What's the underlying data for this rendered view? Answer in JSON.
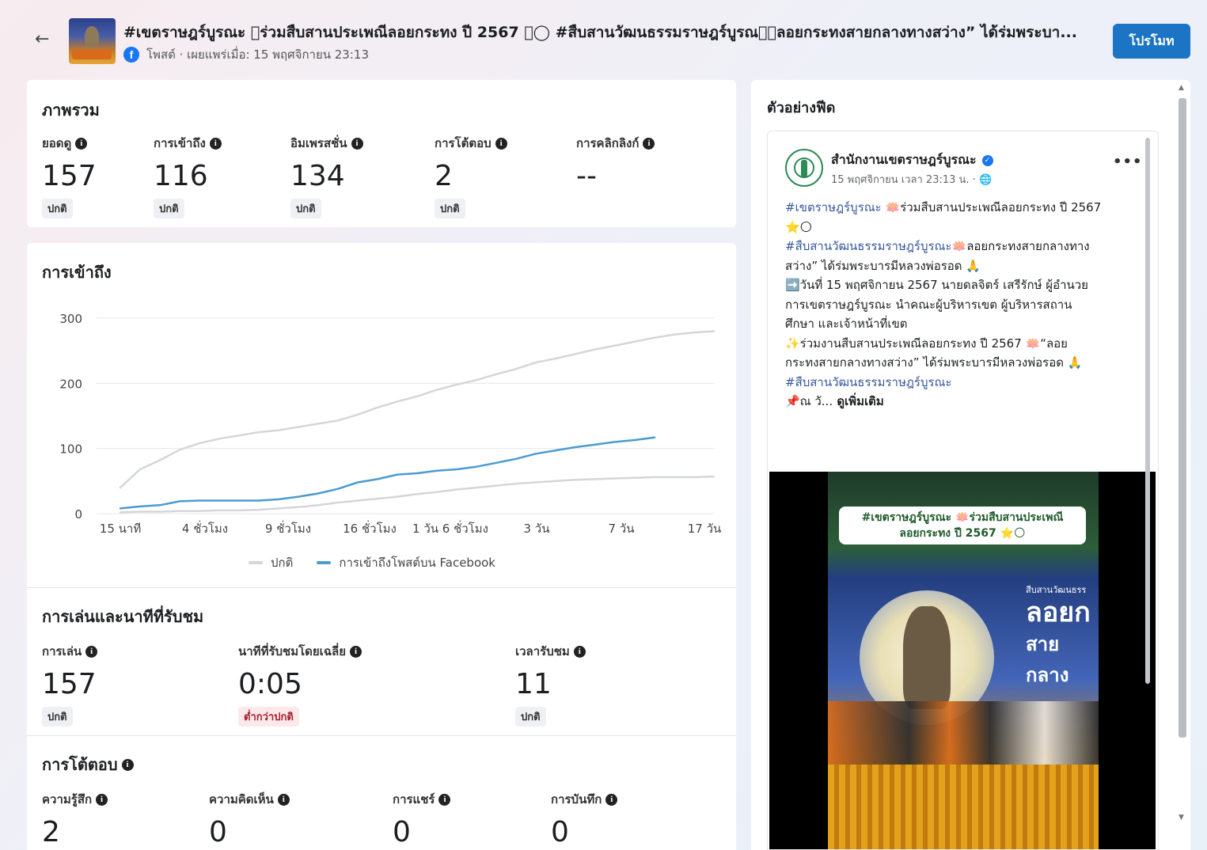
{
  "header": {
    "title": "#เขตราษฎร์บูรณะ ⃞ร่วมสืบสานประเพณีลอยกระทง ปี 2567 ⭑◯ #สืบสานวัฒนธรรมราษฎร์บูรณะ⃞ลอยกระทงสายกลางทางสว่าง” ได้ร่มพระบา...",
    "meta": "โพสต์ · เผยแพร่เมื่อ: 15 พฤศจิกายน 23:13",
    "promote_label": "โปรโมท",
    "fb_letter": "f"
  },
  "overview": {
    "title": "ภาพรวม",
    "metrics": [
      {
        "label": "ยอดดู",
        "value": "157",
        "badge": "ปกติ"
      },
      {
        "label": "การเข้าถึง",
        "value": "116",
        "badge": "ปกติ"
      },
      {
        "label": "อิมเพรสชั่น",
        "value": "134",
        "badge": "ปกติ"
      },
      {
        "label": "การโต้ตอบ",
        "value": "2",
        "badge": "ปกติ"
      },
      {
        "label": "การคลิกลิงก์",
        "value": "--",
        "badge": ""
      }
    ]
  },
  "reach": {
    "title": "การเข้าถึง",
    "legend_normal": "ปกติ",
    "legend_post": "การเข้าถึงโพสต์บน Facebook"
  },
  "chart_data": {
    "type": "line",
    "title": "การเข้าถึง",
    "x_ticks": [
      "15 นาที",
      "4 ชั่วโมง",
      "9 ชั่วโมง",
      "16 ชั่วโมง",
      "1 วัน 6 ชั่วโมง",
      "3 วัน",
      "7 วัน",
      "17 วัน"
    ],
    "y_ticks": [
      "300",
      "200",
      "100",
      "0"
    ],
    "ylim": [
      0,
      300
    ],
    "grid": true,
    "legend_position": "bottom-center",
    "colors": {
      "normal": "#d4d6da",
      "post": "#4b9bd1"
    },
    "series": [
      {
        "name": "ปกติ",
        "role": "normal_upper",
        "values": [
          40,
          68,
          82,
          98,
          108,
          115,
          120,
          125,
          128,
          133,
          138,
          143,
          152,
          163,
          172,
          180,
          190,
          198,
          205,
          214,
          222,
          232,
          238,
          245,
          252,
          258,
          264,
          270,
          275,
          278,
          280
        ]
      },
      {
        "name": "ปกติ",
        "role": "normal_lower",
        "values": [
          2,
          3,
          3,
          4,
          4,
          5,
          5,
          6,
          8,
          10,
          13,
          17,
          20,
          23,
          26,
          30,
          33,
          37,
          40,
          43,
          46,
          48,
          50,
          52,
          53,
          54,
          55,
          56,
          56,
          56,
          57
        ]
      },
      {
        "name": "การเข้าถึงโพสต์บน Facebook",
        "role": "post",
        "values": [
          8,
          11,
          13,
          19,
          20,
          20,
          20,
          20,
          22,
          26,
          31,
          38,
          48,
          53,
          60,
          62,
          66,
          68,
          72,
          78,
          84,
          92,
          97,
          102,
          106,
          110,
          113,
          117
        ]
      }
    ]
  },
  "playback": {
    "title": "การเล่นและนาทีที่รับชม",
    "metrics": [
      {
        "label": "การเล่น",
        "value": "157",
        "badge": "ปกติ",
        "low": false
      },
      {
        "label": "นาทีที่รับชมโดยเฉลี่ย",
        "value": "0:05",
        "badge": "ต่ำกว่าปกติ",
        "low": true
      },
      {
        "label": "เวลารับชม",
        "value": "11",
        "badge": "ปกติ",
        "low": false
      }
    ]
  },
  "engagement": {
    "title": "การโต้ตอบ",
    "metrics": [
      {
        "label": "ความรู้สึก",
        "value": "2"
      },
      {
        "label": "ความคิดเห็น",
        "value": "0"
      },
      {
        "label": "การแชร์",
        "value": "0"
      },
      {
        "label": "การบันทึก",
        "value": "0"
      }
    ]
  },
  "feed": {
    "title": "ตัวอย่างฟีด",
    "page_name": "สำนักงานเขตราษฎร์บูรณะ",
    "time": "15 พฤศจิกายน เวลา 23:13 น. · 🌐",
    "more": "•••",
    "body": {
      "l1_tag": "#เขตราษฎร์บูรณะ",
      "l1_text": " 🪷ร่วมสืบสานประเพณีลอยกระทง ปี 2567",
      "l2": "⭐🌕",
      "l3_tag": "#สืบสานวัฒนธรรมราษฎร์บูรณะ",
      "l3_text": "🪷ลอยกระทงสายกลางทาง",
      "l4": "สว่าง” ได้ร่มพระบารมีหลวงพ่อรอด 🙏",
      "l5": "➡️วันที่ 15 พฤศจิกายน 2567 นายดลจิตร์  เสรีรักษ์ ผู้อำนวย",
      "l6": "การเขตราษฎร์บูรณะ นำคณะผู้บริหารเขต ผู้บริหารสถาน",
      "l7": "ศึกษา และเจ้าหน้าที่เขต",
      "l8": "✨ร่วมงานสืบสานประเพณีลอยกระทง ปี 2567 🪷“ลอย",
      "l9": "กระทงสายกลางทางสว่าง” ได้ร่มพระบารมีหลวงพ่อรอด 🙏",
      "l10_tag": "#สืบสานวัฒนธรรมราษฎร์บูรณะ",
      "l11_text": "📌ณ วั...",
      "see_more": " ดูเพิ่มเติม"
    },
    "video": {
      "banner_l1": "#เขตราษฎร์บูรณะ 🪷ร่วมสืบสานประเพณี",
      "banner_l2": "ลอยกระทง ปี 2567 ⭐🌕",
      "sign_l1": "สืบสานวัฒนธรร",
      "sign_l2": "ลอยก",
      "sign_l3": "สายกลาง"
    }
  }
}
